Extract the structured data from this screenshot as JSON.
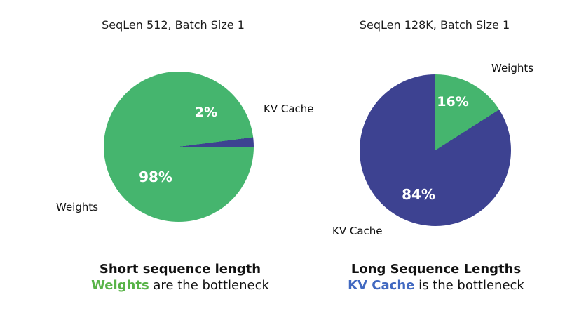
{
  "chart_data": [
    {
      "type": "pie",
      "title": "SeqLen 512, Batch Size 1",
      "rotation_deg": 82.8,
      "legend_position": "none",
      "slices": [
        {
          "label": "KV Cache",
          "value": 2,
          "pct_label": "2%",
          "color": "#3d4291"
        },
        {
          "label": "Weights",
          "value": 98,
          "pct_label": "98%",
          "color": "#45b56e"
        }
      ]
    },
    {
      "type": "pie",
      "title": "SeqLen 128K, Batch Size 1",
      "rotation_deg": 0,
      "legend_position": "none",
      "slices": [
        {
          "label": "Weights",
          "value": 16,
          "pct_label": "16%",
          "color": "#45b56e"
        },
        {
          "label": "KV Cache",
          "value": 84,
          "pct_label": "84%",
          "color": "#3d4291"
        }
      ]
    }
  ],
  "captions": [
    {
      "line1": "Short sequence length",
      "highlight": "Weights",
      "rest": " are the bottleneck",
      "highlight_color": "#58b347"
    },
    {
      "line1": "Long Sequence Lengths",
      "highlight": "KV Cache",
      "rest": " is the bottleneck",
      "highlight_color": "#4169c1"
    }
  ]
}
